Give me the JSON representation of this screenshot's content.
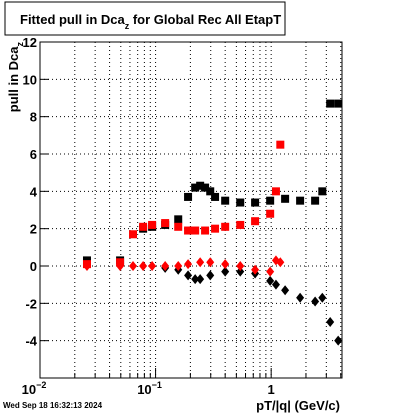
{
  "chart_data": {
    "type": "scatter",
    "title": {
      "main": "Fitted pull in Dca",
      "sub": "z",
      "rest": " for Global Rec All EtapT"
    },
    "y_label": {
      "main": "pull in Dca",
      "sub": "z"
    },
    "x_label": "pT/|q| (GeV/c)",
    "timestamp": "Wed Sep 18 16:32:13 2024",
    "log_x": true,
    "grid": true,
    "xlim": [
      0.01,
      4.1
    ],
    "ylim": [
      -6,
      12
    ],
    "xticks": [
      {
        "value": 0.01,
        "label": "10",
        "exponent": "−2"
      },
      {
        "value": 0.1,
        "label": "10",
        "exponent": "−1"
      },
      1
    ],
    "xminorticks": [
      0.02,
      0.03,
      0.04,
      0.05,
      0.06,
      0.07,
      0.08,
      0.09,
      0.2,
      0.3,
      0.4,
      0.5,
      0.6,
      0.7,
      0.8,
      0.9,
      2,
      3,
      4
    ],
    "yticks": [
      -4,
      -2,
      0,
      2,
      4,
      6,
      8,
      10,
      12
    ],
    "series": [
      {
        "marker": "square",
        "color": "#000000",
        "x": [
          0.0255,
          0.0493,
          0.078,
          0.0933,
          0.121,
          0.157,
          0.191,
          0.22,
          0.243,
          0.268,
          0.297,
          0.327,
          0.4,
          0.54,
          0.726,
          0.98,
          1.32,
          1.78,
          2.4,
          2.77,
          3.24,
          3.8
        ],
        "values": [
          0.3,
          0.3,
          2.0,
          2.1,
          2.2,
          2.5,
          3.7,
          4.2,
          4.3,
          4.2,
          4.0,
          3.7,
          3.5,
          3.4,
          3.4,
          3.5,
          3.6,
          3.5,
          3.5,
          4.0,
          8.7,
          8.7
        ]
      },
      {
        "marker": "square",
        "color": "#ff0000",
        "x": [
          0.0255,
          0.0493,
          0.0638,
          0.078,
          0.0933,
          0.121,
          0.157,
          0.191,
          0.22,
          0.268,
          0.327,
          0.4,
          0.54,
          0.726,
          0.98,
          1.1,
          1.2
        ],
        "values": [
          0.1,
          0.2,
          1.7,
          2.1,
          2.2,
          2.3,
          2.1,
          1.9,
          1.9,
          1.9,
          2.0,
          2.1,
          2.2,
          2.4,
          2.8,
          4.0,
          6.5
        ]
      },
      {
        "marker": "diamond",
        "color": "#000000",
        "x": [
          0.121,
          0.157,
          0.191,
          0.22,
          0.243,
          0.297,
          0.4,
          0.54,
          0.726,
          0.98,
          1.1,
          1.32,
          1.78,
          2.4,
          2.77,
          3.24,
          3.8
        ],
        "values": [
          -0.1,
          -0.2,
          -0.5,
          -0.7,
          -0.7,
          -0.5,
          -0.3,
          -0.3,
          -0.4,
          -0.8,
          -1.0,
          -1.3,
          -1.7,
          -1.9,
          -1.7,
          -3.0,
          -4.0
        ]
      },
      {
        "marker": "diamond",
        "color": "#ff0000",
        "x": [
          0.0255,
          0.0493,
          0.0638,
          0.078,
          0.0933,
          0.121,
          0.157,
          0.191,
          0.243,
          0.297,
          0.4,
          0.54,
          0.726,
          0.98,
          1.1,
          1.2
        ],
        "values": [
          0.0,
          0.0,
          0.0,
          0.0,
          0.0,
          0.0,
          0.0,
          0.1,
          0.2,
          0.2,
          0.1,
          0.0,
          -0.2,
          -0.3,
          0.3,
          0.2
        ]
      }
    ]
  }
}
